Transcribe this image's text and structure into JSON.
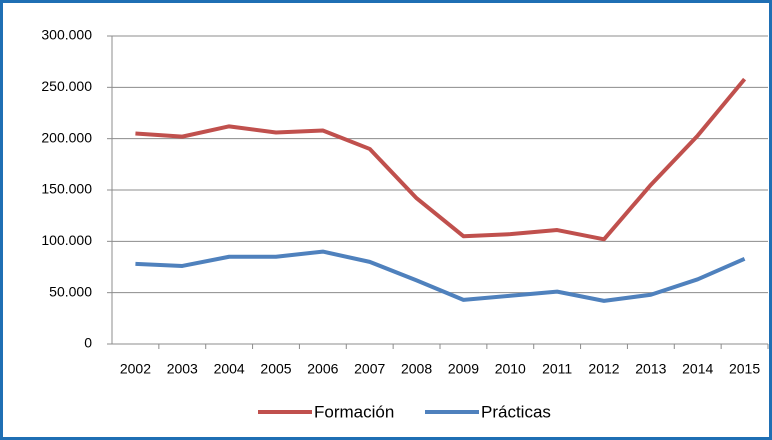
{
  "chart_data": {
    "type": "line",
    "categories": [
      "2002",
      "2003",
      "2004",
      "2005",
      "2006",
      "2007",
      "2008",
      "2009",
      "2010",
      "2011",
      "2012",
      "2013",
      "2014",
      "2015"
    ],
    "series": [
      {
        "name": "Formación",
        "color": "#c0504d",
        "values": [
          205000,
          202000,
          212000,
          206000,
          208000,
          190000,
          142000,
          105000,
          107000,
          111000,
          102000,
          155000,
          203000,
          258000
        ]
      },
      {
        "name": "Prácticas",
        "color": "#4f81bd",
        "values": [
          78000,
          76000,
          85000,
          85000,
          90000,
          80000,
          62000,
          43000,
          47000,
          51000,
          42000,
          48000,
          63000,
          83000
        ]
      }
    ],
    "ylim": [
      0,
      300000
    ],
    "yticks": [
      0,
      {
        "value": 50000,
        "label": "50.000"
      },
      {
        "value": 100000,
        "label": "100.000"
      },
      {
        "value": 150000,
        "label": "150.000"
      },
      {
        "value": 200000,
        "label": "200.000"
      },
      {
        "value": 250000,
        "label": "250.000"
      },
      {
        "value": 300000,
        "label": "300.000"
      }
    ],
    "grid": true,
    "legend": "bottom"
  }
}
